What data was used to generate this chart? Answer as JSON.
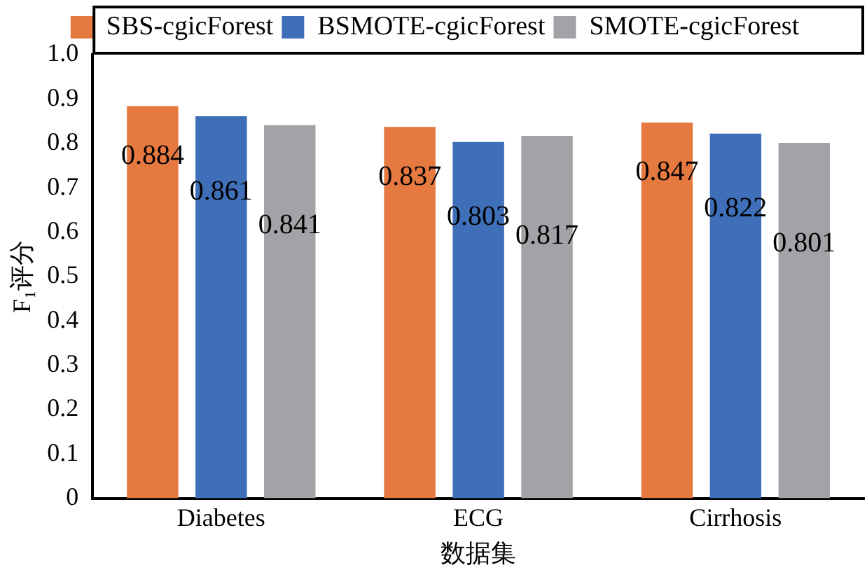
{
  "chart_data": {
    "type": "bar",
    "xlabel": "数据集",
    "ylabel": "F₁评分",
    "categories": [
      "Diabetes",
      "ECG",
      "Cirrhosis"
    ],
    "series": [
      {
        "name": "SBS-cgicForest",
        "color": "#e5793f",
        "values": [
          0.884,
          0.837,
          0.847
        ]
      },
      {
        "name": "BSMOTE-cgicForest",
        "color": "#3f6fb8",
        "values": [
          0.861,
          0.803,
          0.822
        ]
      },
      {
        "name": "SMOTE-cgicForest",
        "color": "#a2a3a6",
        "values": [
          0.841,
          0.817,
          0.801
        ]
      }
    ],
    "ylim": [
      0,
      1
    ],
    "yticks": [
      0,
      0.1,
      0.2,
      0.3,
      0.4,
      0.5,
      0.6,
      0.7,
      0.8,
      0.9,
      {
        "value": 1,
        "label": "1.0"
      }
    ],
    "grid": false,
    "legend": "top",
    "data_labels": true
  }
}
